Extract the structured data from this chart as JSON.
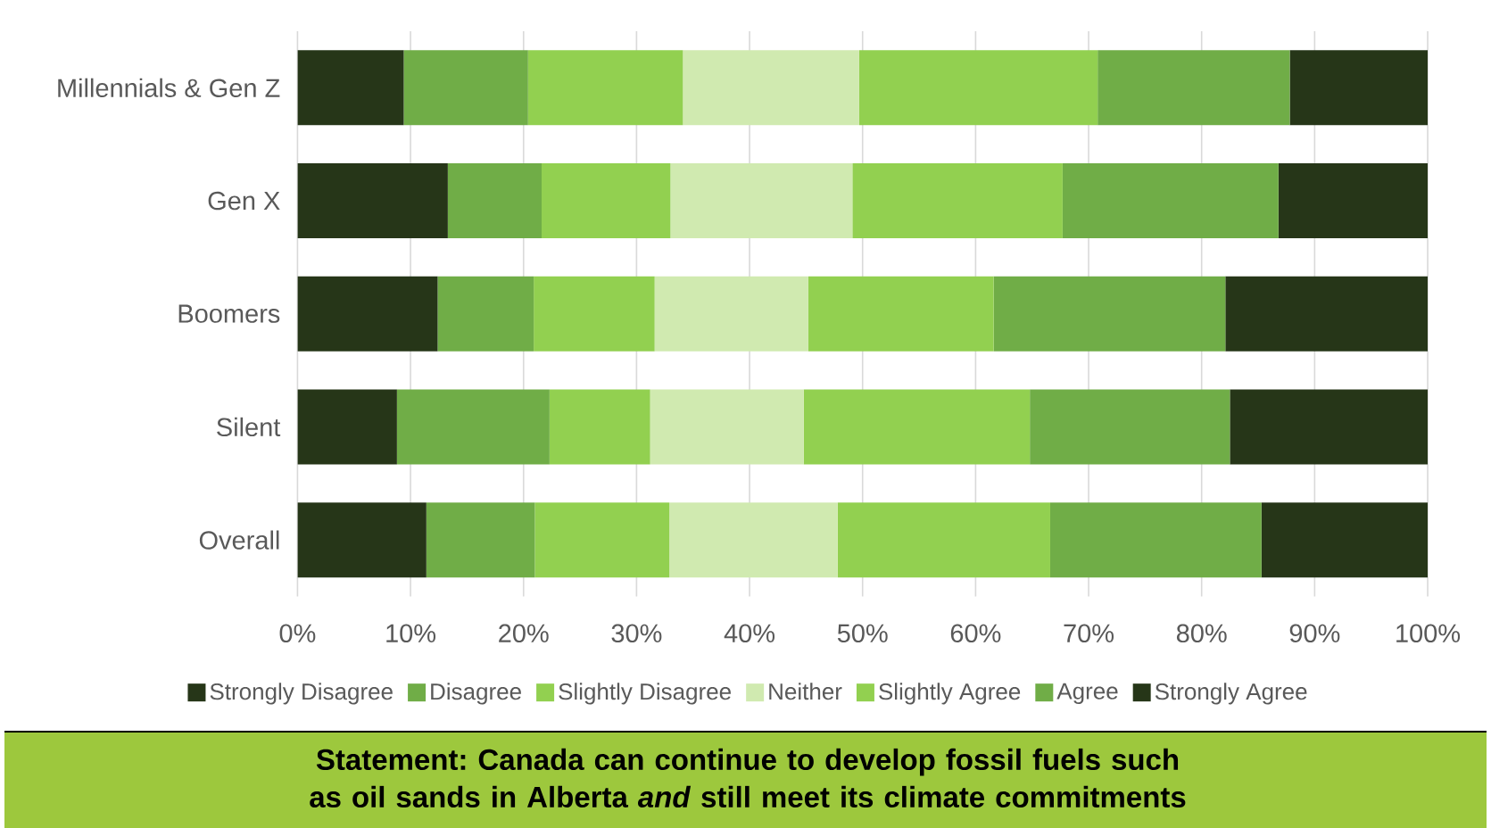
{
  "chart_data": {
    "type": "bar",
    "orientation": "horizontal",
    "stacked": true,
    "title": "Statement: Canada can continue to develop fossil fuels such as oil sands in Alberta *and* still meet its climate commitments",
    "categories": [
      "Millennials & Gen Z",
      "Gen X",
      "Boomers",
      "Silent",
      "Overall"
    ],
    "series": [
      {
        "name": "Strongly Disagree",
        "color": "#263618",
        "values": [
          9.4,
          13.3,
          12.4,
          8.8,
          11.4
        ]
      },
      {
        "name": "Disagree",
        "color": "#70ad47",
        "values": [
          11.0,
          8.3,
          8.5,
          13.5,
          9.6
        ]
      },
      {
        "name": "Slightly Disagree",
        "color": "#92d050",
        "values": [
          13.7,
          11.4,
          10.7,
          8.9,
          11.9
        ]
      },
      {
        "name": "Neither",
        "color": "#d0eab0",
        "values": [
          15.6,
          16.1,
          13.6,
          13.6,
          14.9
        ]
      },
      {
        "name": "Slightly Agree",
        "color": "#92d050",
        "values": [
          21.1,
          18.6,
          16.4,
          20.0,
          18.8
        ]
      },
      {
        "name": "Agree",
        "color": "#70ad47",
        "values": [
          17.0,
          19.1,
          20.5,
          17.7,
          18.7
        ]
      },
      {
        "name": "Strongly Agree",
        "color": "#263618",
        "values": [
          12.2,
          13.2,
          17.9,
          17.5,
          14.7
        ]
      }
    ],
    "xlim": [
      0,
      100
    ],
    "xticks": [
      {
        "value": 0,
        "label": "0%"
      },
      {
        "value": 10,
        "label": "10%"
      },
      {
        "value": 20,
        "label": "20%"
      },
      {
        "value": 30,
        "label": "30%"
      },
      {
        "value": 40,
        "label": "40%"
      },
      {
        "value": 50,
        "label": "50%"
      },
      {
        "value": 60,
        "label": "60%"
      },
      {
        "value": 70,
        "label": "70%"
      },
      {
        "value": 80,
        "label": "80%"
      },
      {
        "value": 90,
        "label": "90%"
      },
      {
        "value": 100,
        "label": "100%"
      }
    ],
    "grid": "x",
    "legend": "bottom"
  }
}
